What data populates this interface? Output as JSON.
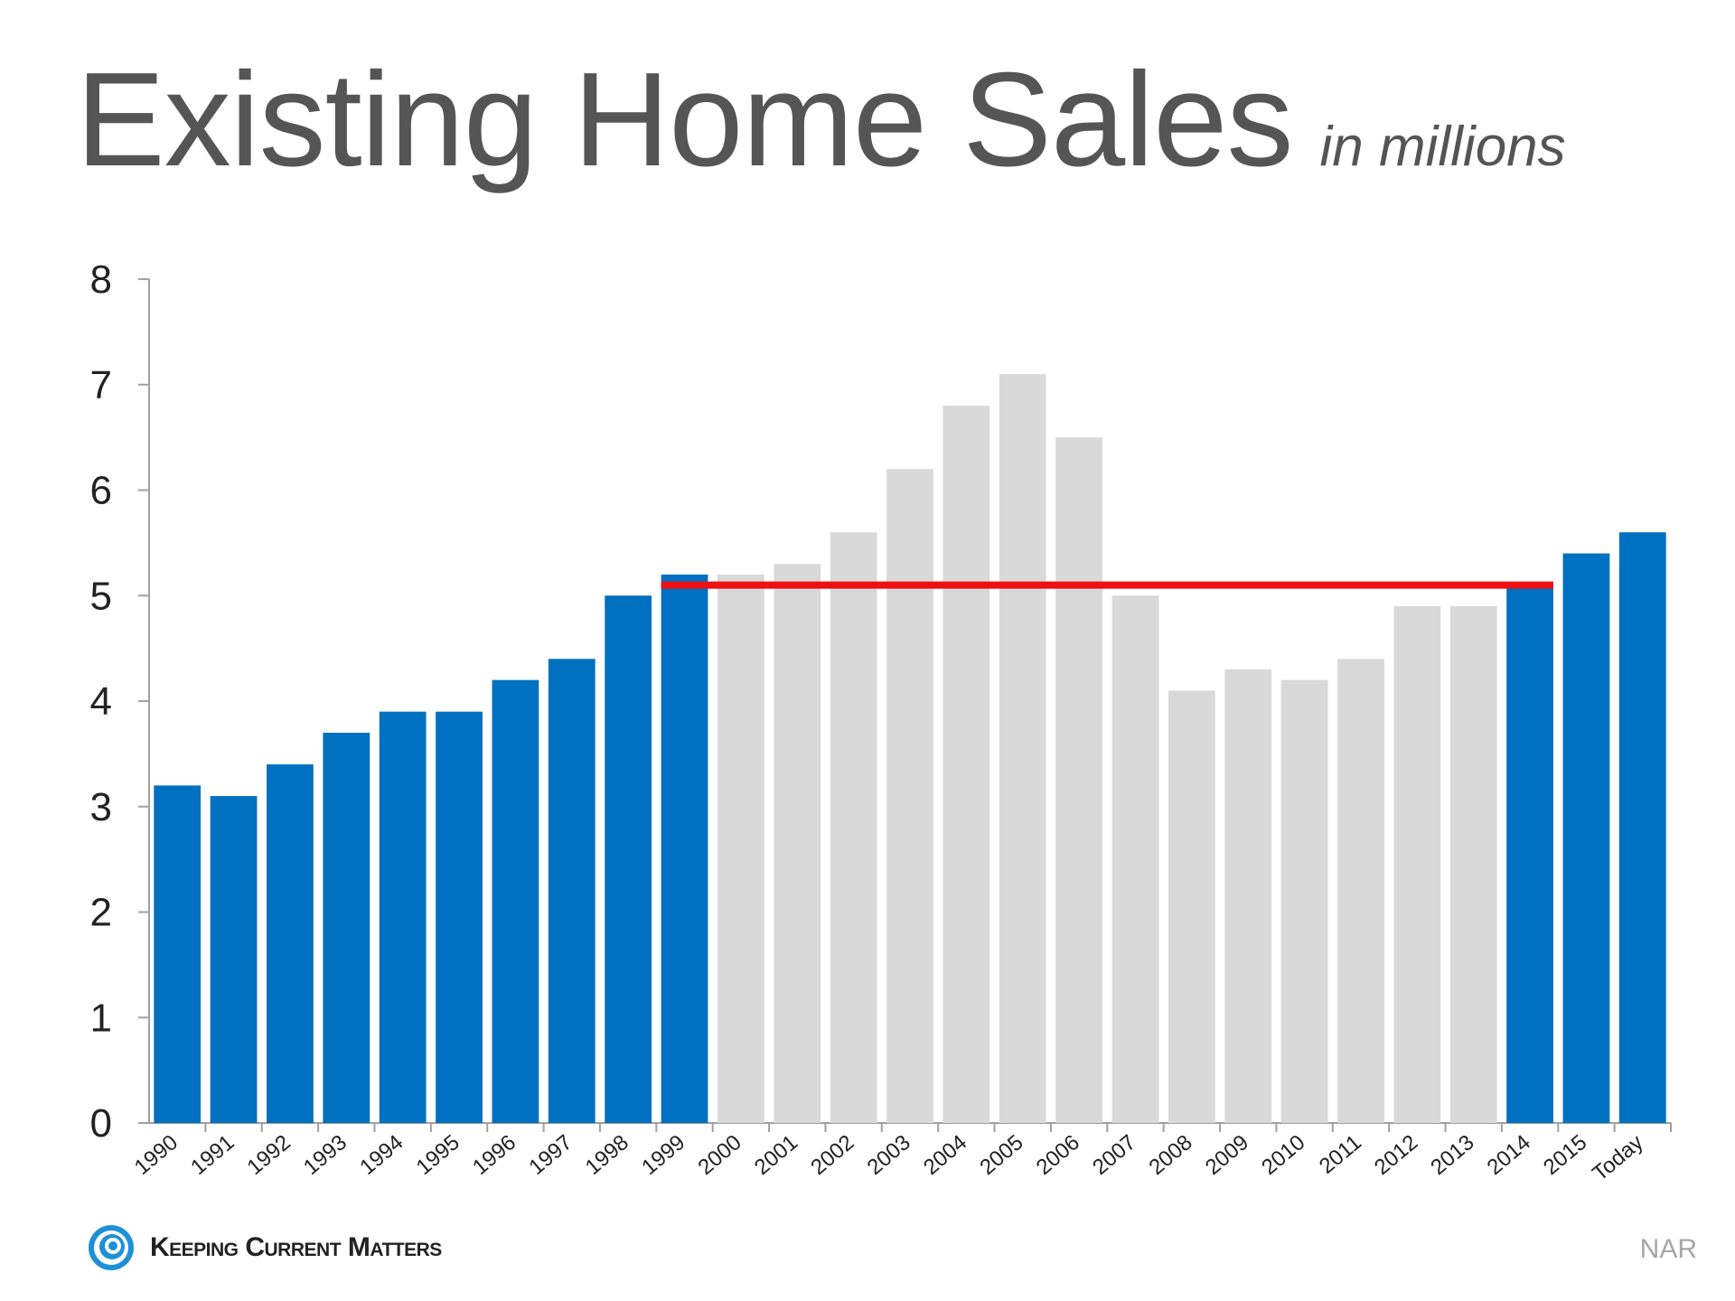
{
  "title": "Existing Home Sales",
  "subtitle": "in millions",
  "source": "NAR",
  "logo_text": "Keeping Current Matters",
  "colors": {
    "blue": "#0070c0",
    "gray": "#d9d9d9",
    "red": "#ee1111",
    "title": "#555555"
  },
  "chart_data": {
    "type": "bar",
    "title": "Existing Home Sales",
    "subtitle": "in millions",
    "categories": [
      "1990",
      "1991",
      "1992",
      "1993",
      "1994",
      "1995",
      "1996",
      "1997",
      "1998",
      "1999",
      "2000",
      "2001",
      "2002",
      "2003",
      "2004",
      "2005",
      "2006",
      "2007",
      "2008",
      "2009",
      "2010",
      "2011",
      "2012",
      "2013",
      "2014",
      "2015",
      "Today"
    ],
    "values": [
      3.2,
      3.1,
      3.4,
      3.7,
      3.9,
      3.9,
      4.2,
      4.4,
      5.0,
      5.2,
      5.2,
      5.3,
      5.6,
      6.2,
      6.8,
      7.1,
      6.5,
      5.0,
      4.1,
      4.3,
      4.2,
      4.4,
      4.9,
      4.9,
      5.1,
      5.4,
      5.6
    ],
    "bar_colors": [
      "blue",
      "blue",
      "blue",
      "blue",
      "blue",
      "blue",
      "blue",
      "blue",
      "blue",
      "blue",
      "gray",
      "gray",
      "gray",
      "gray",
      "gray",
      "gray",
      "gray",
      "gray",
      "gray",
      "gray",
      "gray",
      "gray",
      "gray",
      "gray",
      "blue",
      "blue",
      "blue"
    ],
    "ylim": [
      0,
      8
    ],
    "yticks": [
      0,
      1,
      2,
      3,
      4,
      5,
      6,
      7,
      8
    ],
    "reference_line": {
      "y": 5.1,
      "from": "1999",
      "to": "2014",
      "color": "red"
    },
    "grid": false,
    "legend": "none"
  }
}
